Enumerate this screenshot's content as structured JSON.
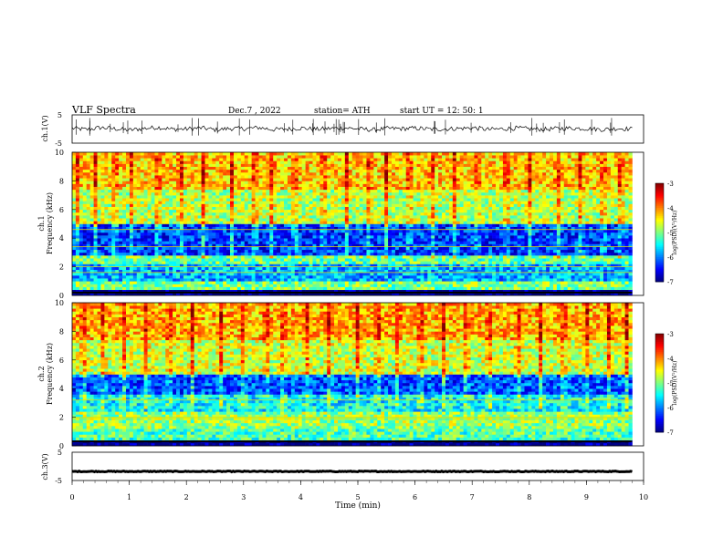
{
  "header": {
    "title": "VLF  Spectra",
    "date": "Dec.7  , 2022",
    "station": "station= ATH",
    "start_ut": "start  UT  =    12: 50: 1"
  },
  "chart_data": [
    {
      "type": "line",
      "panel": "ch1-waveform",
      "ylabel": "ch.1(V)",
      "ylim": [
        -5,
        5
      ],
      "yticks": [
        "5",
        "-5"
      ],
      "x_range": [
        0,
        9.8
      ],
      "series": [
        {
          "values": [
            0.3,
            -0.2,
            0.5,
            0.1,
            -0.4,
            0.2,
            0.6,
            -0.1,
            0.0,
            0.4,
            -0.3,
            0.2,
            0.1,
            0.5,
            -0.2,
            0.0,
            0.3,
            -0.1,
            0.2,
            0.4,
            0.0,
            -0.3,
            0.2,
            0.1,
            0.3,
            -0.1,
            0.0,
            0.2,
            0.4,
            -0.2,
            0.1,
            0.3,
            0.0,
            -0.1,
            0.2,
            0.3,
            0.1,
            -0.2,
            0.2,
            0.0
          ]
        }
      ],
      "color": "#000000"
    },
    {
      "type": "heatmap",
      "panel": "ch1-spectrogram",
      "ylabel_lines": [
        "ch.1",
        "Frequency  (kHz)"
      ],
      "ylim": [
        0,
        10
      ],
      "yticks": [
        "0",
        "2",
        "4",
        "6",
        "8",
        "10"
      ],
      "x_range": [
        0,
        9.8
      ],
      "colorbar": {
        "label": "log(PSD)(V²/Hz)",
        "range": [
          -7,
          -3
        ],
        "ticks": [
          "-3",
          "-4",
          "-5",
          "-6",
          "-7"
        ]
      },
      "row_bands_khz": [
        {
          "from": 0.0,
          "to": 0.4,
          "level": -7.0
        },
        {
          "from": 0.4,
          "to": 1.0,
          "level": -5.0
        },
        {
          "from": 1.0,
          "to": 2.2,
          "level": -5.8
        },
        {
          "from": 2.2,
          "to": 2.8,
          "level": -5.1
        },
        {
          "from": 2.8,
          "to": 5.0,
          "level": -6.3
        },
        {
          "from": 5.0,
          "to": 7.5,
          "level": -4.8
        },
        {
          "from": 7.5,
          "to": 10.0,
          "level": -4.3
        }
      ],
      "vertical_spikes_min": [
        0.1,
        0.4,
        0.75,
        1.05,
        1.5,
        1.9,
        2.3,
        2.8,
        3.2,
        3.5,
        3.9,
        4.4,
        4.8,
        5.2,
        5.5,
        5.9,
        6.3,
        6.7,
        7.1,
        7.6,
        8.0,
        8.5,
        8.9,
        9.3,
        9.6
      ],
      "constant_lines_khz": [
        0.2,
        1.6,
        2.0,
        3.4,
        4.6
      ]
    },
    {
      "type": "heatmap",
      "panel": "ch2-spectrogram",
      "ylabel_lines": [
        "ch.2",
        "Frequency  (kHz)"
      ],
      "ylim": [
        0,
        10
      ],
      "yticks": [
        "0",
        "2",
        "4",
        "6",
        "8",
        "10"
      ],
      "x_range": [
        0,
        9.8
      ],
      "colorbar": {
        "label": "log(PSD)(V²/Hz)",
        "range": [
          -7,
          -3
        ],
        "ticks": [
          "-3",
          "-4",
          "-5",
          "-6",
          "-7"
        ]
      },
      "row_bands_khz": [
        {
          "from": 0.0,
          "to": 0.4,
          "level": -7.0
        },
        {
          "from": 0.4,
          "to": 1.2,
          "level": -5.2
        },
        {
          "from": 1.2,
          "to": 2.4,
          "level": -4.9
        },
        {
          "from": 2.4,
          "to": 3.6,
          "level": -5.5
        },
        {
          "from": 3.6,
          "to": 5.0,
          "level": -6.2
        },
        {
          "from": 5.0,
          "to": 7.5,
          "level": -4.7
        },
        {
          "from": 7.5,
          "to": 10.0,
          "level": -4.2
        }
      ],
      "vertical_spikes_min": [
        0.2,
        0.55,
        0.9,
        1.3,
        1.7,
        2.1,
        2.6,
        3.0,
        3.4,
        3.7,
        4.1,
        4.5,
        5.0,
        5.35,
        5.7,
        6.1,
        6.5,
        6.9,
        7.3,
        7.8,
        8.2,
        8.6,
        9.0,
        9.4,
        9.7
      ],
      "constant_lines_khz": [
        0.3,
        1.9,
        2.0,
        3.2
      ]
    },
    {
      "type": "line",
      "panel": "ch3-waveform",
      "ylabel": "ch.3(V)",
      "ylim": [
        -5,
        5
      ],
      "yticks": [
        "5",
        "-5"
      ],
      "x_range": [
        0,
        9.8
      ],
      "series": [
        {
          "values": [
            -1.8,
            -1.8,
            -1.8,
            -1.8,
            -1.8,
            -1.8,
            -1.8,
            -1.8,
            -1.8,
            -1.8
          ]
        }
      ],
      "xlabel": "Time  (min)",
      "xlim": [
        0,
        10
      ],
      "xticks": [
        "0",
        "1",
        "2",
        "3",
        "4",
        "5",
        "6",
        "7",
        "8",
        "9",
        "10"
      ],
      "color": "#000000"
    }
  ]
}
